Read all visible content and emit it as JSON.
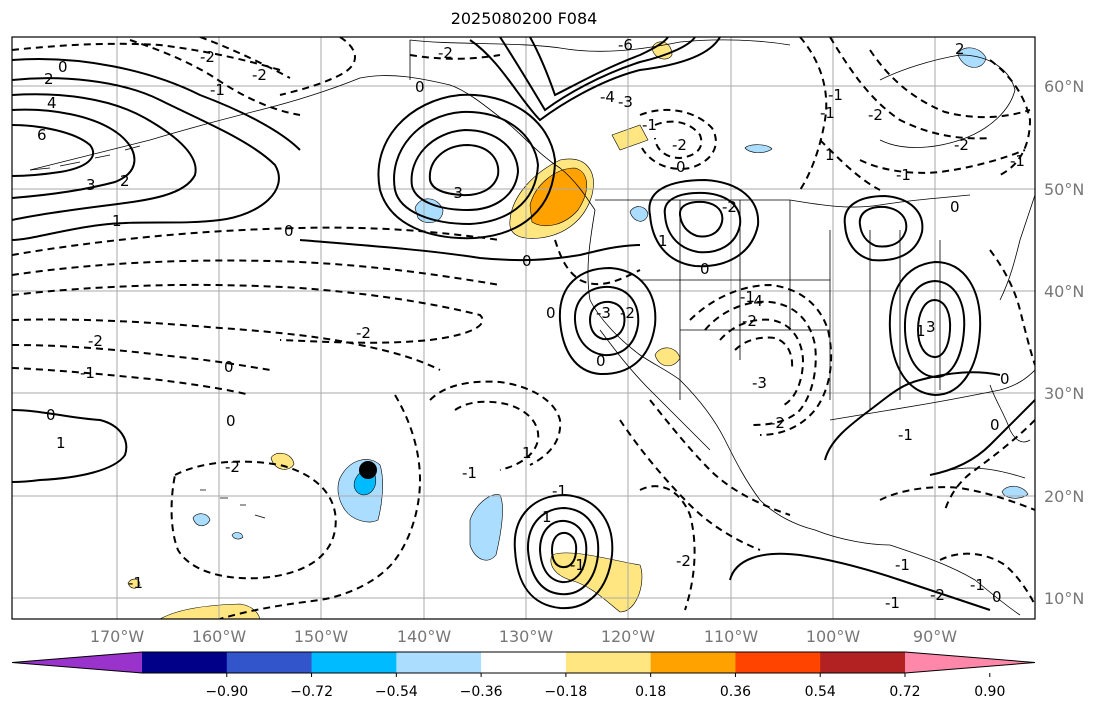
{
  "title": "2025080200 F084",
  "lon_labels": [
    "170°W",
    "160°W",
    "150°W",
    "140°W",
    "130°W",
    "120°W",
    "110°W",
    "100°W",
    "90°W"
  ],
  "lat_labels": [
    "60°N",
    "50°N",
    "40°N",
    "30°N",
    "20°N",
    "10°N"
  ],
  "colorbar": {
    "colors": [
      "#9933cc",
      "#000088",
      "#3355cc",
      "#00bbff",
      "#aaddff",
      "#ffffff",
      "#ffe680",
      "#ffa200",
      "#ff4400",
      "#b22222",
      "#ff88aa"
    ],
    "tick_labels": [
      "−0.90",
      "−0.72",
      "−0.54",
      "−0.36",
      "−0.18",
      "0.18",
      "0.36",
      "0.54",
      "0.72",
      "0.90"
    ]
  },
  "contour_labels": [
    "0",
    "2",
    "4",
    "6",
    "3",
    "2",
    "1",
    "-2",
    "-2",
    "-1",
    "-2",
    "-6",
    "-4",
    "-3",
    "-2",
    "-1",
    "0",
    "-1",
    "-1",
    "-2",
    "2",
    "1",
    "0",
    "0",
    "0",
    "-1",
    "-2",
    "-1",
    "0",
    "0",
    "0",
    "0",
    "0",
    "1",
    "-1",
    "-2",
    "-2",
    "-3",
    "-3",
    "-2",
    "-2",
    "-4",
    "-1",
    "-2",
    "-3",
    "-2",
    "1",
    "0",
    "1",
    "1",
    "-1",
    "-2",
    "-1",
    "-2",
    "0",
    "-1",
    "-1",
    "1",
    "3",
    "-1",
    "0",
    "0",
    "-1",
    "-2",
    "-1",
    "-1",
    "0"
  ],
  "storm_marker": "storm-center-marker"
}
